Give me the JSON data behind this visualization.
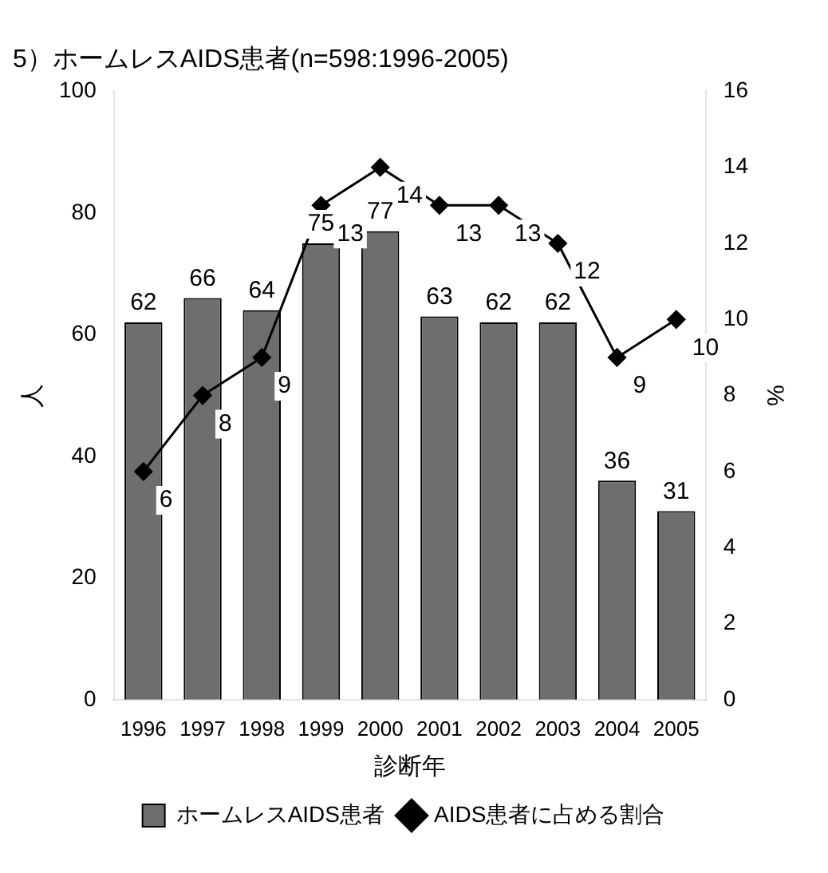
{
  "chart_data": {
    "type": "bar",
    "title": "5）ホームレスAIDS患者(n=598:1996-2005)",
    "xlabel": "診断年",
    "ylabel": "人",
    "y2label": "%",
    "categories": [
      "1996",
      "1997",
      "1998",
      "1999",
      "2000",
      "2001",
      "2002",
      "2003",
      "2004",
      "2005"
    ],
    "series": [
      {
        "name": "ホームレスAIDS患者",
        "color": "#6e6e6e",
        "values": [
          62,
          66,
          64,
          75,
          77,
          63,
          62,
          62,
          36,
          31
        ]
      },
      {
        "name": "AIDS患者に占める割合",
        "type": "line",
        "axis": "y2",
        "color": "#000000",
        "marker": "diamond",
        "values": [
          6,
          8,
          9,
          13,
          14,
          13,
          13,
          12,
          9,
          10
        ]
      }
    ],
    "ylim": [
      0,
      100
    ],
    "yticks": [
      0,
      20,
      40,
      60,
      80,
      100
    ],
    "y2lim": [
      0,
      16
    ],
    "y2ticks": [
      0,
      2,
      4,
      6,
      8,
      10,
      12,
      14,
      16
    ],
    "data_labels": true,
    "grid": false,
    "legend": "bottom"
  }
}
